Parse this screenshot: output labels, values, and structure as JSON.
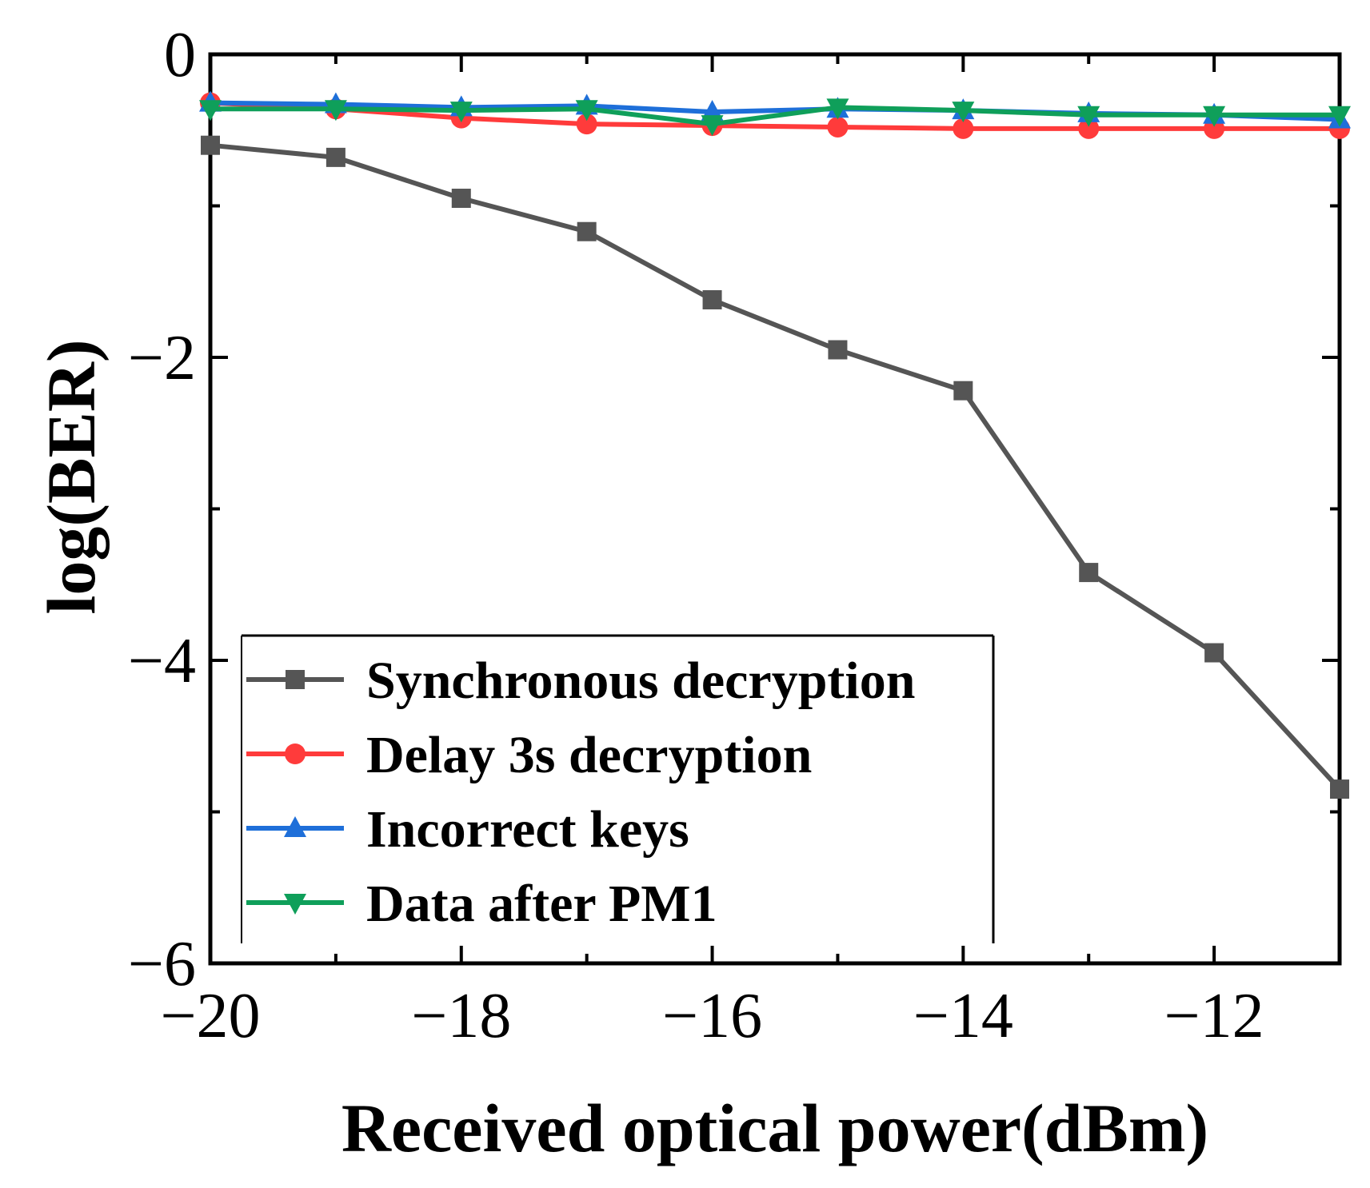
{
  "chart_data": {
    "type": "line",
    "xlabel": "Received optical power(dBm)",
    "ylabel": "log(BER)",
    "xlim": [
      -20,
      -11
    ],
    "ylim": [
      -6,
      0
    ],
    "x_ticks": [
      -20,
      -18,
      -16,
      -14,
      -12
    ],
    "x_tick_labels": [
      "−20",
      "−18",
      "−16",
      "−14",
      "−12"
    ],
    "y_ticks": [
      0,
      -2,
      -4,
      -6
    ],
    "y_tick_labels": [
      "0",
      "−2",
      "−4",
      "−6"
    ],
    "x": [
      -20,
      -19,
      -18,
      -17,
      -16,
      -15,
      -14,
      -13,
      -12,
      -11
    ],
    "grid": false,
    "legend_position": "bottom-left",
    "series": [
      {
        "name": "Synchronous decryption",
        "color": "#555555",
        "marker": "square",
        "values": [
          -0.6,
          -0.68,
          -0.95,
          -1.17,
          -1.62,
          -1.95,
          -2.22,
          -3.42,
          -3.95,
          -4.85
        ]
      },
      {
        "name": "Delay 3s decryption",
        "color": "#ff3b3b",
        "marker": "circle",
        "values": [
          -0.32,
          -0.36,
          -0.42,
          -0.46,
          -0.47,
          -0.48,
          -0.49,
          -0.49,
          -0.49,
          -0.49
        ]
      },
      {
        "name": "Incorrect keys",
        "color": "#1e6fd9",
        "marker": "triangle-up",
        "values": [
          -0.32,
          -0.33,
          -0.35,
          -0.34,
          -0.38,
          -0.36,
          -0.37,
          -0.39,
          -0.4,
          -0.43
        ]
      },
      {
        "name": "Data after PM1",
        "color": "#0f9f5a",
        "marker": "triangle-down",
        "values": [
          -0.36,
          -0.36,
          -0.37,
          -0.36,
          -0.46,
          -0.35,
          -0.37,
          -0.4,
          -0.4,
          -0.4
        ]
      }
    ]
  }
}
